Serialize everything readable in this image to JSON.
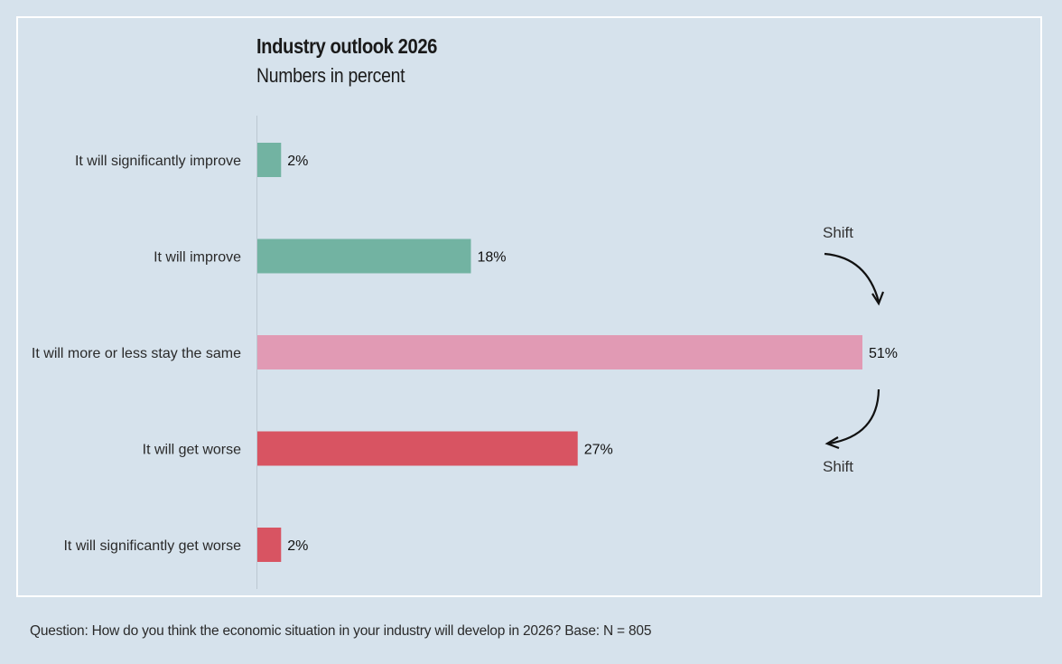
{
  "chart_data": {
    "type": "bar",
    "orientation": "horizontal",
    "title": "Industry outlook 2026",
    "subtitle": "Numbers in percent",
    "categories": [
      "It will significantly improve",
      "It will improve",
      "It will more or less stay the same",
      "It will get worse",
      "It will significantly get worse"
    ],
    "values": [
      2,
      18,
      51,
      27,
      2
    ],
    "value_labels": [
      "2%",
      "18%",
      "51%",
      "27%",
      "2%"
    ],
    "colors": [
      "#72b3a2",
      "#72b3a2",
      "#e19ab4",
      "#d85462",
      "#d85462"
    ],
    "xlim": [
      0,
      51
    ],
    "grid": false,
    "annotations": [
      {
        "text": "Shift",
        "position": "above",
        "direction": "down"
      },
      {
        "text": "Shift",
        "position": "below",
        "direction": "down-left"
      }
    ]
  },
  "footnote": "Question: How do you think the economic situation in your industry will develop in 2026?  Base: N = 805"
}
